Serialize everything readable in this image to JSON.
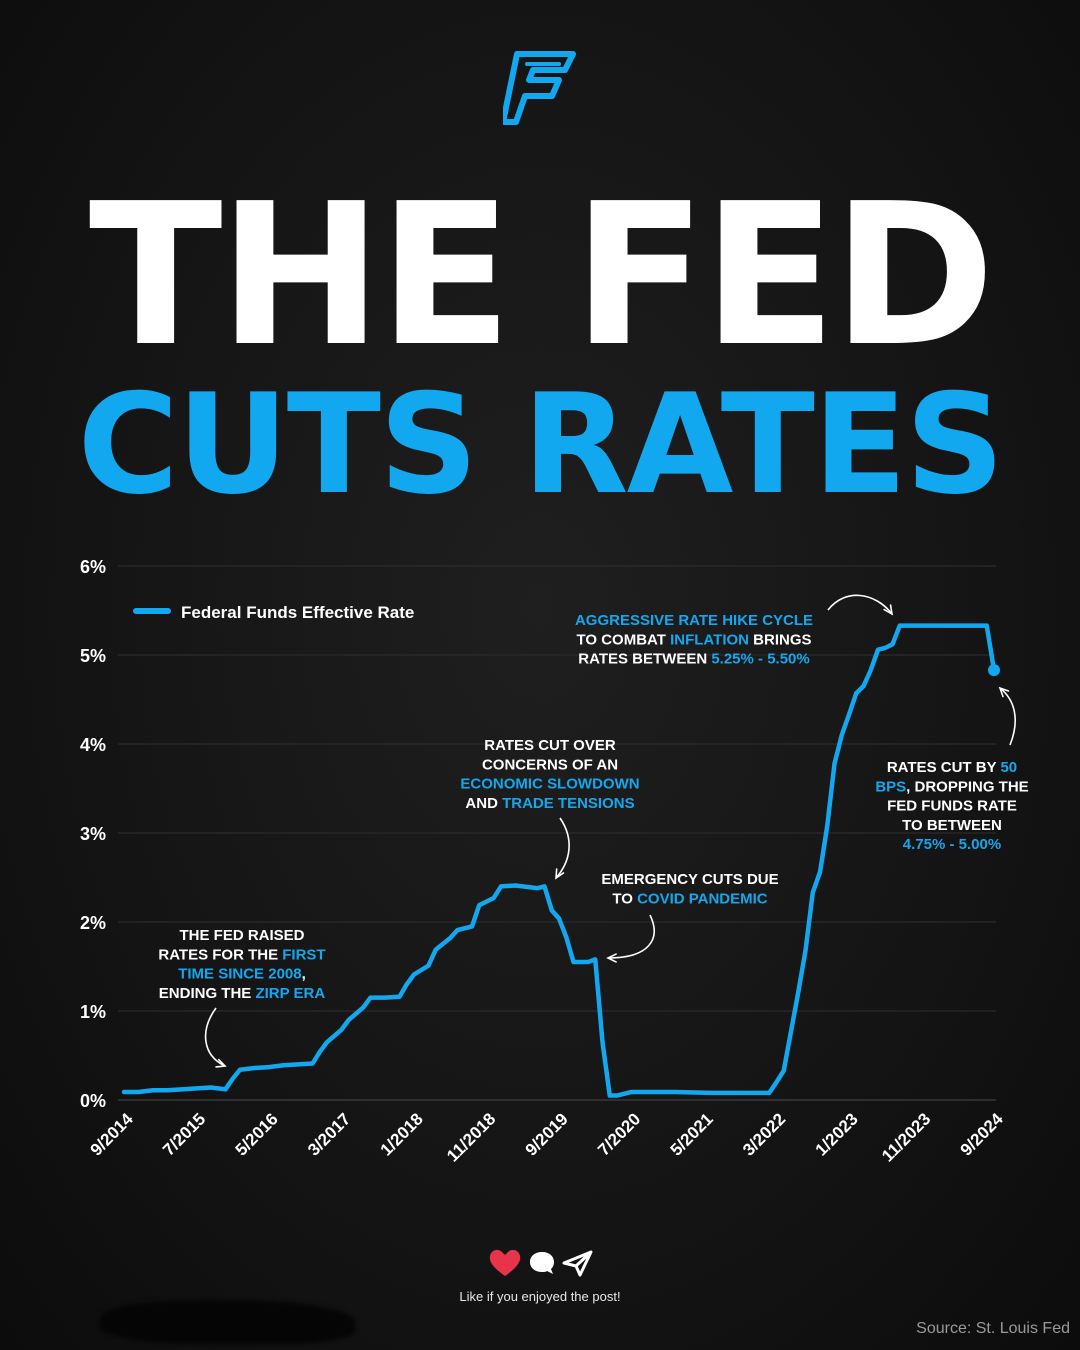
{
  "header": {
    "title_line1": "THE FED",
    "title_line2": "CUTS RATES"
  },
  "colors": {
    "accent": "#12a8f0",
    "background": "#161616",
    "text": "#ffffff",
    "heart": "#e8334a"
  },
  "chart_data": {
    "type": "line",
    "title": "",
    "xlabel": "",
    "ylabel": "",
    "ylim": [
      0,
      6
    ],
    "y_ticks": [
      "0%",
      "1%",
      "2%",
      "3%",
      "4%",
      "5%",
      "6%"
    ],
    "x_ticks": [
      "9/2014",
      "7/2015",
      "5/2016",
      "3/2017",
      "1/2018",
      "11/2018",
      "9/2019",
      "7/2020",
      "5/2021",
      "3/2022",
      "1/2023",
      "11/2023",
      "9/2024"
    ],
    "grid": true,
    "legend_position": "top-left",
    "series": [
      {
        "name": "Federal Funds Effective Rate",
        "color": "#12a8f0",
        "points": [
          [
            "2014-09",
            0.09
          ],
          [
            "2014-11",
            0.09
          ],
          [
            "2015-01",
            0.11
          ],
          [
            "2015-03",
            0.11
          ],
          [
            "2015-05",
            0.12
          ],
          [
            "2015-07",
            0.13
          ],
          [
            "2015-09",
            0.14
          ],
          [
            "2015-11",
            0.12
          ],
          [
            "2015-12",
            0.24
          ],
          [
            "2016-01",
            0.34
          ],
          [
            "2016-03",
            0.36
          ],
          [
            "2016-05",
            0.37
          ],
          [
            "2016-07",
            0.39
          ],
          [
            "2016-09",
            0.4
          ],
          [
            "2016-11",
            0.41
          ],
          [
            "2016-12",
            0.54
          ],
          [
            "2017-01",
            0.65
          ],
          [
            "2017-03",
            0.79
          ],
          [
            "2017-04",
            0.9
          ],
          [
            "2017-06",
            1.04
          ],
          [
            "2017-07",
            1.15
          ],
          [
            "2017-09",
            1.15
          ],
          [
            "2017-11",
            1.16
          ],
          [
            "2017-12",
            1.3
          ],
          [
            "2018-01",
            1.41
          ],
          [
            "2018-03",
            1.51
          ],
          [
            "2018-04",
            1.69
          ],
          [
            "2018-06",
            1.82
          ],
          [
            "2018-07",
            1.91
          ],
          [
            "2018-09",
            1.95
          ],
          [
            "2018-10",
            2.19
          ],
          [
            "2018-12",
            2.27
          ],
          [
            "2019-01",
            2.4
          ],
          [
            "2019-03",
            2.41
          ],
          [
            "2019-05",
            2.39
          ],
          [
            "2019-06",
            2.38
          ],
          [
            "2019-07",
            2.4
          ],
          [
            "2019-08",
            2.13
          ],
          [
            "2019-09",
            2.04
          ],
          [
            "2019-10",
            1.83
          ],
          [
            "2019-11",
            1.55
          ],
          [
            "2019-12",
            1.55
          ],
          [
            "2020-01",
            1.55
          ],
          [
            "2020-02",
            1.58
          ],
          [
            "2020-03",
            0.65
          ],
          [
            "2020-04",
            0.05
          ],
          [
            "2020-05",
            0.05
          ],
          [
            "2020-07",
            0.09
          ],
          [
            "2020-10",
            0.09
          ],
          [
            "2021-01",
            0.09
          ],
          [
            "2021-06",
            0.08
          ],
          [
            "2021-09",
            0.08
          ],
          [
            "2021-12",
            0.08
          ],
          [
            "2022-02",
            0.08
          ],
          [
            "2022-03",
            0.2
          ],
          [
            "2022-04",
            0.33
          ],
          [
            "2022-05",
            0.77
          ],
          [
            "2022-06",
            1.21
          ],
          [
            "2022-07",
            1.68
          ],
          [
            "2022-08",
            2.33
          ],
          [
            "2022-09",
            2.56
          ],
          [
            "2022-10",
            3.08
          ],
          [
            "2022-11",
            3.78
          ],
          [
            "2022-12",
            4.1
          ],
          [
            "2023-01",
            4.33
          ],
          [
            "2023-02",
            4.57
          ],
          [
            "2023-03",
            4.65
          ],
          [
            "2023-04",
            4.83
          ],
          [
            "2023-05",
            5.06
          ],
          [
            "2023-06",
            5.08
          ],
          [
            "2023-07",
            5.12
          ],
          [
            "2023-08",
            5.33
          ],
          [
            "2023-10",
            5.33
          ],
          [
            "2024-01",
            5.33
          ],
          [
            "2024-04",
            5.33
          ],
          [
            "2024-08",
            5.33
          ],
          [
            "2024-09",
            4.83
          ]
        ]
      }
    ],
    "annotations": [
      {
        "id": "zirp",
        "lines": [
          [
            {
              "t": "THE FED RAISED"
            }
          ],
          [
            {
              "t": "RATES FOR THE "
            },
            {
              "t": "FIRST",
              "h": true
            }
          ],
          [
            {
              "t": "TIME SINCE 2008",
              "h": true
            },
            {
              "t": ","
            }
          ],
          [
            {
              "t": "ENDING THE "
            },
            {
              "t": "ZIRP ERA",
              "h": true
            }
          ]
        ]
      },
      {
        "id": "trade",
        "lines": [
          [
            {
              "t": "RATES CUT OVER"
            }
          ],
          [
            {
              "t": "CONCERNS OF AN"
            }
          ],
          [
            {
              "t": "ECONOMIC SLOWDOWN",
              "h": true
            }
          ],
          [
            {
              "t": "AND "
            },
            {
              "t": "TRADE TENSIONS",
              "h": true
            }
          ]
        ]
      },
      {
        "id": "covid",
        "lines": [
          [
            {
              "t": "EMERGENCY CUTS DUE"
            }
          ],
          [
            {
              "t": "TO "
            },
            {
              "t": "COVID PANDEMIC",
              "h": true
            }
          ]
        ]
      },
      {
        "id": "hike",
        "lines": [
          [
            {
              "t": "AGGRESSIVE RATE HIKE CYCLE",
              "h": true
            }
          ],
          [
            {
              "t": "TO COMBAT "
            },
            {
              "t": "INFLATION",
              "h": true
            },
            {
              "t": " BRINGS"
            }
          ],
          [
            {
              "t": "RATES BETWEEN "
            },
            {
              "t": "5.25% - 5.50%",
              "h": true
            }
          ]
        ]
      },
      {
        "id": "cut",
        "lines": [
          [
            {
              "t": "RATES CUT BY "
            },
            {
              "t": "50",
              "h": true
            }
          ],
          [
            {
              "t": "BPS",
              "h": true
            },
            {
              "t": ", DROPPING THE"
            }
          ],
          [
            {
              "t": "FED FUNDS RATE"
            }
          ],
          [
            {
              "t": "TO BETWEEN"
            }
          ],
          [
            {
              "t": "4.75% - 5.00%",
              "h": true
            }
          ]
        ]
      }
    ]
  },
  "footer": {
    "cta": "Like if you enjoyed the post!",
    "icons": [
      "heart-icon",
      "comment-icon",
      "share-icon"
    ],
    "source": "Source: St. Louis Fed"
  }
}
